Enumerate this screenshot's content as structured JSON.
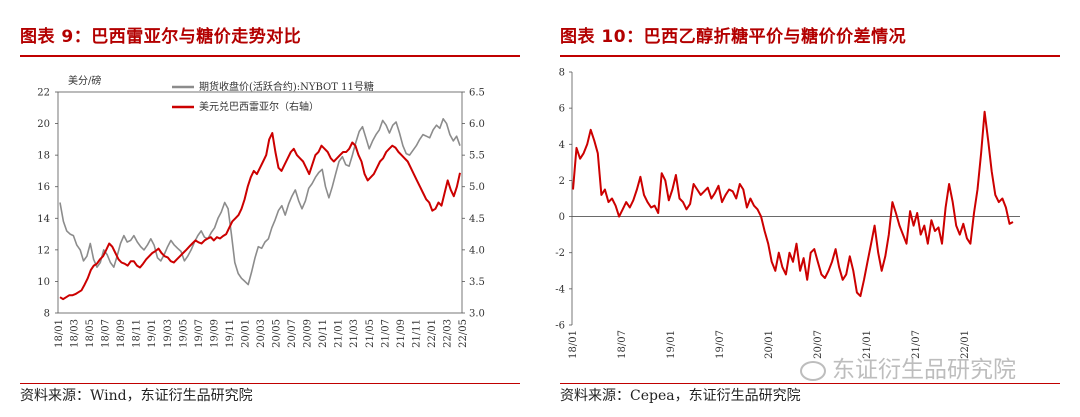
{
  "left": {
    "title": "图表 9：巴西雷亚尔与糖价走势对比",
    "source": "资料来源：Wind，东证衍生品研究院"
  },
  "right": {
    "title": "图表 10：巴西乙醇折糖平价与糖价价差情况",
    "source": "资料来源：Cepea，东证衍生品研究院"
  },
  "watermark": "东证衍生品研究院",
  "colors": {
    "title": "#b30000",
    "gray_series": "#8c8c8c",
    "red_series": "#cc0000"
  },
  "chart_data": [
    {
      "type": "line",
      "title": "",
      "unit_left": "美分/磅",
      "y_left": {
        "min": 8,
        "max": 22,
        "ticks": [
          8,
          10,
          12,
          14,
          16,
          18,
          20,
          22
        ]
      },
      "y_right": {
        "min": 3.0,
        "max": 6.5,
        "ticks": [
          "3.0",
          "3.5",
          "4.0",
          "4.5",
          "5.0",
          "5.5",
          "6.0",
          "6.5"
        ]
      },
      "x_ticks": [
        "18/01",
        "18/03",
        "18/05",
        "18/07",
        "18/09",
        "18/11",
        "19/01",
        "19/03",
        "19/05",
        "19/07",
        "19/09",
        "19/11",
        "20/01",
        "20/03",
        "20/05",
        "20/07",
        "20/09",
        "20/11",
        "21/01",
        "21/03",
        "21/05",
        "21/07",
        "21/09",
        "21/11",
        "22/01",
        "22/03",
        "22/05"
      ],
      "series": [
        {
          "name": "期货收盘价(活跃合约):NYBOT 11号糖",
          "axis": "left",
          "color": "#8c8c8c",
          "values": [
            15.0,
            13.8,
            13.2,
            13.0,
            12.9,
            12.3,
            12.0,
            11.3,
            11.6,
            12.4,
            11.4,
            10.9,
            11.2,
            12.0,
            11.7,
            11.2,
            10.9,
            11.6,
            12.4,
            12.9,
            12.5,
            12.6,
            12.9,
            12.5,
            12.2,
            12.0,
            12.3,
            12.7,
            12.3,
            11.5,
            11.3,
            11.7,
            12.2,
            12.6,
            12.3,
            12.1,
            11.9,
            11.3,
            11.6,
            12.0,
            12.5,
            12.9,
            13.2,
            12.8,
            12.7,
            13.1,
            13.4,
            14.0,
            14.4,
            15.0,
            14.6,
            13.0,
            11.2,
            10.5,
            10.2,
            10.0,
            9.8,
            10.6,
            11.5,
            12.2,
            12.1,
            12.5,
            12.7,
            13.4,
            13.9,
            14.5,
            14.8,
            14.2,
            14.9,
            15.4,
            15.8,
            15.1,
            14.6,
            15.1,
            15.9,
            16.2,
            16.6,
            16.9,
            17.1,
            16.0,
            15.3,
            16.0,
            16.8,
            17.6,
            17.9,
            17.4,
            17.3,
            18.0,
            18.8,
            19.5,
            19.8,
            19.1,
            18.4,
            18.9,
            19.3,
            19.6,
            20.2,
            19.9,
            19.4,
            19.9,
            20.1,
            19.4,
            18.6,
            18.1,
            18.0,
            18.3,
            18.6,
            19.0,
            19.3,
            19.2,
            19.1,
            19.6,
            19.9,
            19.7,
            20.3,
            20.0,
            19.3,
            18.9,
            19.2,
            18.6
          ]
        },
        {
          "name": "美元兑巴西雷亚尔（右轴）",
          "axis": "right",
          "color": "#cc0000",
          "values": [
            3.25,
            3.22,
            3.25,
            3.28,
            3.28,
            3.3,
            3.33,
            3.36,
            3.45,
            3.55,
            3.68,
            3.75,
            3.78,
            3.85,
            3.9,
            4.0,
            4.1,
            4.05,
            3.95,
            3.85,
            3.8,
            3.78,
            3.75,
            3.82,
            3.82,
            3.75,
            3.72,
            3.78,
            3.85,
            3.9,
            3.95,
            3.98,
            4.02,
            3.95,
            3.9,
            3.88,
            3.82,
            3.8,
            3.85,
            3.9,
            3.95,
            4.0,
            4.05,
            4.1,
            4.15,
            4.12,
            4.1,
            4.15,
            4.18,
            4.2,
            4.15,
            4.2,
            4.18,
            4.22,
            4.25,
            4.35,
            4.45,
            4.5,
            4.55,
            4.65,
            4.8,
            5.0,
            5.15,
            5.25,
            5.2,
            5.3,
            5.4,
            5.5,
            5.75,
            5.85,
            5.55,
            5.3,
            5.25,
            5.35,
            5.45,
            5.55,
            5.6,
            5.5,
            5.45,
            5.4,
            5.3,
            5.2,
            5.35,
            5.5,
            5.55,
            5.65,
            5.6,
            5.55,
            5.45,
            5.4,
            5.45,
            5.5,
            5.55,
            5.55,
            5.6,
            5.7,
            5.65,
            5.5,
            5.4,
            5.2,
            5.1,
            5.15,
            5.2,
            5.3,
            5.4,
            5.45,
            5.55,
            5.6,
            5.65,
            5.62,
            5.55,
            5.5,
            5.45,
            5.4,
            5.3,
            5.2,
            5.1,
            5.0,
            4.9,
            4.8,
            4.75,
            4.62,
            4.65,
            4.75,
            4.7,
            4.9,
            5.1,
            4.95,
            4.85,
            5.0,
            5.22
          ]
        }
      ]
    },
    {
      "type": "line",
      "title": "",
      "y": {
        "min": -6,
        "max": 8,
        "ticks": [
          -6,
          -4,
          -2,
          0,
          2,
          4,
          6,
          8
        ]
      },
      "x_ticks": [
        "18/01",
        "18/07",
        "19/01",
        "19/07",
        "20/01",
        "20/07",
        "21/01",
        "21/07",
        "22/01"
      ],
      "series": [
        {
          "name": "",
          "color": "#cc0000",
          "values": [
            1.5,
            3.8,
            3.2,
            3.5,
            4.0,
            4.8,
            4.2,
            3.5,
            1.2,
            1.5,
            0.8,
            1.0,
            0.6,
            0.0,
            0.4,
            0.8,
            0.5,
            0.9,
            1.5,
            2.2,
            1.2,
            0.8,
            0.5,
            0.6,
            0.2,
            2.4,
            2.0,
            0.9,
            1.5,
            2.3,
            1.0,
            0.8,
            0.4,
            0.7,
            1.8,
            1.5,
            1.2,
            1.4,
            1.6,
            1.0,
            1.3,
            1.7,
            0.8,
            1.2,
            1.5,
            1.4,
            1.0,
            1.8,
            1.5,
            0.5,
            1.0,
            0.6,
            0.4,
            0.0,
            -0.8,
            -1.5,
            -2.5,
            -3.0,
            -2.0,
            -2.8,
            -3.2,
            -2.0,
            -2.5,
            -1.5,
            -3.0,
            -2.3,
            -3.5,
            -2.0,
            -1.8,
            -2.5,
            -3.2,
            -3.4,
            -3.0,
            -2.5,
            -1.8,
            -2.8,
            -3.5,
            -3.2,
            -2.2,
            -3.0,
            -4.2,
            -4.4,
            -3.5,
            -2.5,
            -1.5,
            -0.5,
            -2.0,
            -3.0,
            -2.2,
            -1.0,
            0.8,
            0.2,
            -0.5,
            -1.0,
            -1.5,
            0.3,
            -0.5,
            0.2,
            -1.0,
            -0.5,
            -1.5,
            -0.2,
            -0.8,
            -0.6,
            -1.5,
            0.5,
            1.8,
            0.8,
            -0.5,
            -1.0,
            -0.4,
            -1.2,
            -1.5,
            0.2,
            1.5,
            3.5,
            5.8,
            4.2,
            2.5,
            1.2,
            0.8,
            1.0,
            0.5,
            -0.4,
            -0.3
          ]
        }
      ]
    }
  ]
}
